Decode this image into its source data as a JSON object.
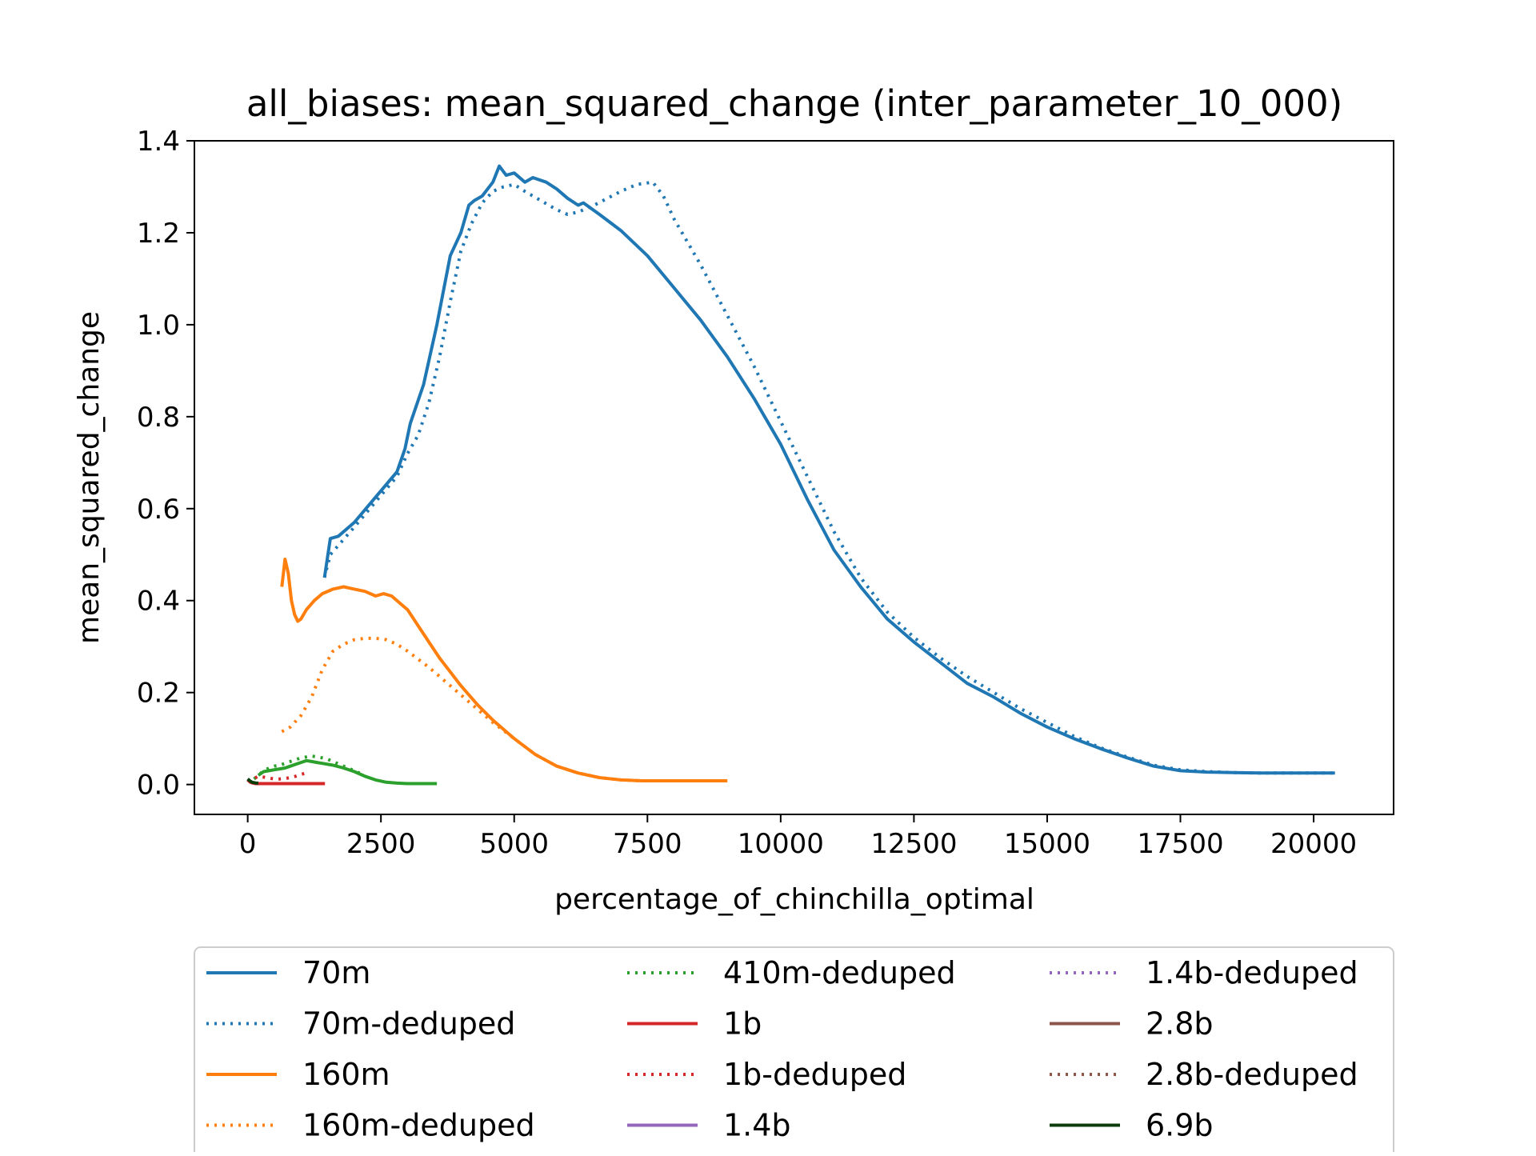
{
  "chart_data": {
    "type": "line",
    "title": "all_biases: mean_squared_change (inter_parameter_10_000)",
    "xlabel": "percentage_of_chinchilla_optimal",
    "ylabel": "mean_squared_change",
    "xlim": [
      -1000,
      21500
    ],
    "ylim": [
      -0.065,
      1.4
    ],
    "xticks": [
      0,
      2500,
      5000,
      7500,
      10000,
      12500,
      15000,
      17500,
      20000
    ],
    "xtick_labels": [
      "0",
      "2500",
      "5000",
      "7500",
      "10000",
      "12500",
      "15000",
      "17500",
      "20000"
    ],
    "yticks": [
      0.0,
      0.2,
      0.4,
      0.6,
      0.8,
      1.0,
      1.2,
      1.4
    ],
    "ytick_labels": [
      "0.0",
      "0.2",
      "0.4",
      "0.6",
      "0.8",
      "1.0",
      "1.2",
      "1.4"
    ],
    "grid": false,
    "legend_position": "below",
    "legend_columns": 3,
    "series": [
      {
        "name": "70m",
        "color": "#1f77b4",
        "style": "solid",
        "x": [
          1440,
          1550,
          1700,
          2000,
          2400,
          2800,
          2950,
          3050,
          3300,
          3550,
          3800,
          4000,
          4150,
          4250,
          4400,
          4600,
          4720,
          4850,
          5000,
          5200,
          5350,
          5600,
          5800,
          6000,
          6200,
          6300,
          6600,
          7000,
          7500,
          8000,
          8500,
          9000,
          9500,
          10000,
          10500,
          11000,
          11500,
          12000,
          12500,
          13000,
          13500,
          14000,
          14500,
          15000,
          15500,
          16000,
          16500,
          17000,
          17500,
          18000,
          18500,
          19000,
          19500,
          20000,
          20400
        ],
        "y": [
          0.45,
          0.535,
          0.54,
          0.57,
          0.625,
          0.68,
          0.73,
          0.785,
          0.87,
          1.0,
          1.15,
          1.2,
          1.26,
          1.27,
          1.28,
          1.31,
          1.345,
          1.325,
          1.33,
          1.31,
          1.32,
          1.31,
          1.295,
          1.275,
          1.26,
          1.265,
          1.24,
          1.205,
          1.15,
          1.08,
          1.01,
          0.93,
          0.84,
          0.74,
          0.62,
          0.51,
          0.43,
          0.36,
          0.31,
          0.265,
          0.22,
          0.19,
          0.155,
          0.125,
          0.1,
          0.078,
          0.058,
          0.04,
          0.03,
          0.027,
          0.026,
          0.025,
          0.025,
          0.025,
          0.025
        ]
      },
      {
        "name": "70m-deduped",
        "color": "#1f77b4",
        "style": "dotted",
        "x": [
          1440,
          1550,
          1700,
          2000,
          2400,
          2800,
          3000,
          3200,
          3400,
          3600,
          3800,
          4000,
          4200,
          4400,
          4600,
          4800,
          5000,
          5200,
          5500,
          5800,
          6000,
          6200,
          6500,
          7000,
          7300,
          7600,
          7800,
          8000,
          8500,
          9000,
          9500,
          10000,
          10500,
          11000,
          11500,
          12000,
          12500,
          13000,
          13500,
          14000,
          14500,
          15000,
          15500,
          16000,
          16500,
          17000,
          17500,
          18000,
          18500,
          19000,
          19500,
          20000,
          20400
        ],
        "y": [
          0.45,
          0.5,
          0.52,
          0.56,
          0.615,
          0.67,
          0.72,
          0.76,
          0.83,
          0.93,
          1.05,
          1.16,
          1.22,
          1.265,
          1.29,
          1.3,
          1.305,
          1.29,
          1.27,
          1.25,
          1.24,
          1.245,
          1.26,
          1.29,
          1.305,
          1.31,
          1.28,
          1.23,
          1.13,
          1.02,
          0.91,
          0.79,
          0.67,
          0.55,
          0.45,
          0.375,
          0.32,
          0.275,
          0.235,
          0.2,
          0.165,
          0.135,
          0.105,
          0.08,
          0.06,
          0.042,
          0.032,
          0.028,
          0.026,
          0.025,
          0.025,
          0.025,
          0.025
        ]
      },
      {
        "name": "160m",
        "color": "#ff7f0e",
        "style": "solid",
        "x": [
          640,
          700,
          760,
          820,
          880,
          940,
          1000,
          1100,
          1250,
          1400,
          1600,
          1800,
          2000,
          2200,
          2400,
          2550,
          2700,
          2850,
          3000,
          3200,
          3400,
          3600,
          3800,
          4000,
          4300,
          4600,
          5000,
          5400,
          5800,
          6200,
          6600,
          7000,
          7400,
          7800,
          8200,
          8600,
          9000
        ],
        "y": [
          0.43,
          0.49,
          0.46,
          0.4,
          0.37,
          0.355,
          0.36,
          0.38,
          0.4,
          0.415,
          0.425,
          0.43,
          0.425,
          0.42,
          0.41,
          0.415,
          0.41,
          0.395,
          0.38,
          0.345,
          0.31,
          0.275,
          0.245,
          0.215,
          0.175,
          0.14,
          0.1,
          0.065,
          0.04,
          0.025,
          0.015,
          0.01,
          0.008,
          0.008,
          0.008,
          0.008,
          0.008
        ]
      },
      {
        "name": "160m-deduped",
        "color": "#ff7f0e",
        "style": "dotted",
        "x": [
          640,
          800,
          1000,
          1200,
          1400,
          1600,
          1800,
          2000,
          2200,
          2400,
          2600,
          2800,
          3000,
          3400,
          3800,
          4200,
          4600,
          5000,
          5400,
          5800,
          6200,
          6600,
          7000,
          7400,
          7800,
          8200,
          8600,
          9000
        ],
        "y": [
          0.115,
          0.125,
          0.15,
          0.19,
          0.25,
          0.29,
          0.305,
          0.315,
          0.318,
          0.318,
          0.315,
          0.305,
          0.29,
          0.255,
          0.215,
          0.175,
          0.135,
          0.1,
          0.065,
          0.04,
          0.025,
          0.015,
          0.01,
          0.008,
          0.008,
          0.008,
          0.008,
          0.008
        ]
      },
      {
        "name": "410m-deduped",
        "color": "#2ca02c",
        "style": "dotted",
        "x": [
          120,
          200,
          300,
          400,
          500,
          600,
          700,
          800,
          900,
          1000,
          1100,
          1200,
          1300,
          1400,
          1500,
          1600,
          1700,
          1800,
          1900,
          2000,
          2100
        ],
        "y": [
          0.012,
          0.02,
          0.03,
          0.036,
          0.04,
          0.042,
          0.046,
          0.05,
          0.054,
          0.058,
          0.06,
          0.062,
          0.06,
          0.058,
          0.055,
          0.05,
          0.045,
          0.04,
          0.035,
          0.03,
          0.025
        ]
      },
      {
        "name": "1b",
        "color": "#d62728",
        "style": "solid",
        "x": [
          0,
          50,
          100,
          150,
          200,
          300,
          500,
          700,
          900,
          1100,
          1300,
          1450
        ],
        "y": [
          0.01,
          0.005,
          0.003,
          0.002,
          0.002,
          0.002,
          0.002,
          0.002,
          0.002,
          0.002,
          0.002,
          0.002
        ]
      },
      {
        "name": "1b-deduped",
        "color": "#d62728",
        "style": "dotted",
        "x": [
          0,
          100,
          200,
          300,
          400,
          500,
          600,
          700,
          800,
          900,
          1000,
          1100
        ],
        "y": [
          0.008,
          0.012,
          0.018,
          0.016,
          0.014,
          0.012,
          0.012,
          0.013,
          0.015,
          0.018,
          0.022,
          0.025
        ]
      },
      {
        "name": "1.4b",
        "color": "#9467bd",
        "style": "solid",
        "x": [],
        "y": []
      },
      {
        "name": "1.4b-deduped",
        "color": "#9467bd",
        "style": "dotted",
        "x": [],
        "y": []
      },
      {
        "name": "2.8b",
        "color": "#8c564b",
        "style": "solid",
        "x": [],
        "y": []
      },
      {
        "name": "2.8b-deduped",
        "color": "#8c564b",
        "style": "dotted",
        "x": [],
        "y": []
      },
      {
        "name": "6.9b",
        "color": "#0b3d0b",
        "style": "solid",
        "x": [
          0,
          40,
          80,
          120,
          160,
          200
        ],
        "y": [
          0.012,
          0.008,
          0.005,
          0.004,
          0.003,
          0.003
        ]
      }
    ],
    "extra_series": [
      {
        "name": "",
        "color": "#2ca02c",
        "style": "solid",
        "x": [
          200,
          300,
          400,
          500,
          600,
          700,
          800,
          900,
          1000,
          1100,
          1200,
          1300,
          1400,
          1600,
          1800,
          2000,
          2200,
          2400,
          2600,
          2800,
          3000,
          3200,
          3400,
          3550
        ],
        "y": [
          0.02,
          0.028,
          0.03,
          0.032,
          0.034,
          0.036,
          0.04,
          0.044,
          0.048,
          0.052,
          0.05,
          0.048,
          0.046,
          0.042,
          0.036,
          0.028,
          0.018,
          0.01,
          0.005,
          0.003,
          0.002,
          0.002,
          0.002,
          0.002
        ]
      }
    ]
  }
}
